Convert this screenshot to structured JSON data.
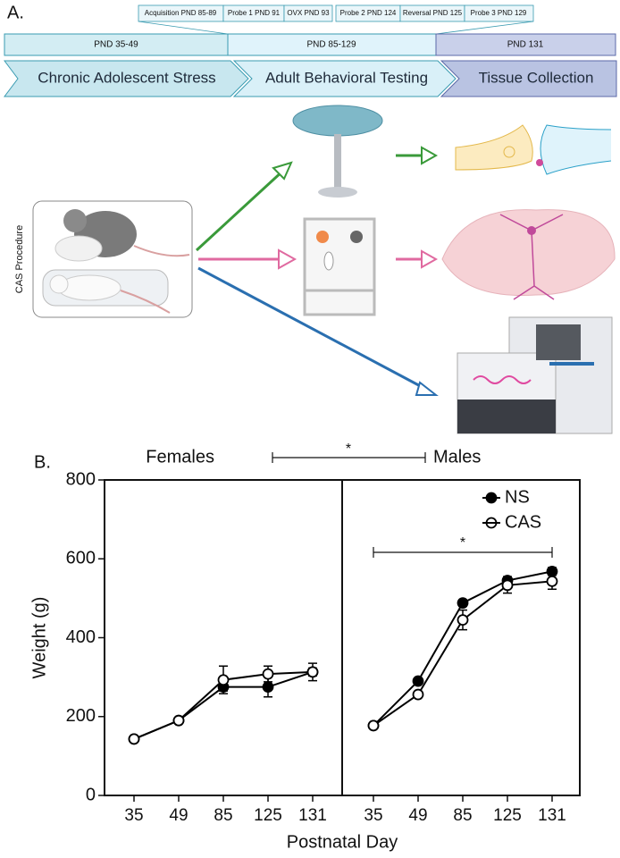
{
  "panel_a": {
    "label": "A.",
    "timeline_events": [
      "Acquisition PND 85-89",
      "Probe 1 PND 91",
      "OVX PND 93",
      "Probe 2 PND 124",
      "Reversal PND 125",
      "Probe 3 PND 129"
    ],
    "phases": [
      {
        "pnd": "PND 35-49",
        "name": "Chronic Adolescent Stress"
      },
      {
        "pnd": "PND 85-129",
        "name": "Adult Behavioral Testing"
      },
      {
        "pnd": "PND 131",
        "name": "Tissue Collection"
      }
    ],
    "procedure_label": "CAS Procedure"
  },
  "panel_b": {
    "label": "B.",
    "sex_annotation": "*"
  },
  "chart_data": [
    {
      "type": "line",
      "title": "Females",
      "ylabel": "Weight (g)",
      "xlabel": "Postnatal Day",
      "categories": [
        "35",
        "49",
        "85",
        "125",
        "131"
      ],
      "series": [
        {
          "color": "#000000",
          "marker": "filled",
          "values": [
            143,
            190,
            275,
            275,
            313
          ],
          "errors": [
            0,
            0,
            10,
            25,
            10
          ]
        },
        {
          "color": "#000000",
          "marker": "open",
          "values": [
            143,
            190,
            293,
            308,
            313
          ],
          "errors": [
            0,
            0,
            35,
            20,
            22
          ]
        }
      ],
      "ylim": [
        0,
        800
      ],
      "yticks": [
        0,
        200,
        400,
        600,
        800
      ]
    },
    {
      "type": "line",
      "title": "Males",
      "annotation": "*",
      "legend": "upper right",
      "categories": [
        "35",
        "49",
        "85",
        "125",
        "131"
      ],
      "series": [
        {
          "name": "NS",
          "color": "#000000",
          "marker": "filled",
          "values": [
            177,
            290,
            488,
            545,
            568
          ],
          "errors": [
            0,
            5,
            8,
            10,
            10
          ]
        },
        {
          "name": "CAS",
          "color": "#000000",
          "marker": "open",
          "values": [
            177,
            256,
            445,
            533,
            543
          ],
          "errors": [
            0,
            5,
            25,
            20,
            20
          ]
        }
      ],
      "ylim": [
        0,
        800
      ]
    }
  ]
}
